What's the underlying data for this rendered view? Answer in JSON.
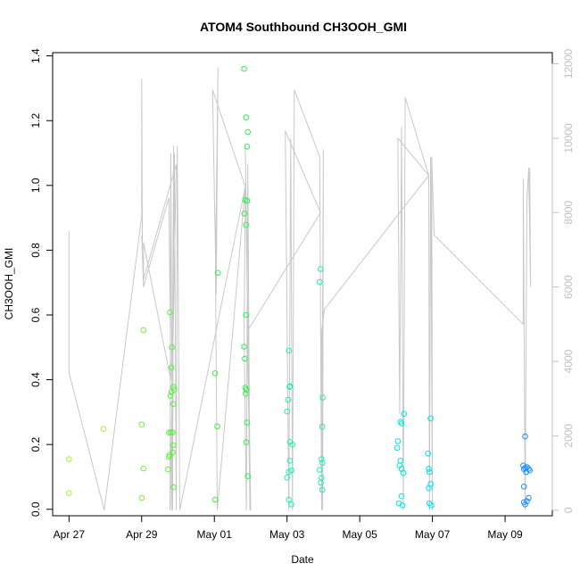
{
  "chart_data": {
    "type": "scatter",
    "title": "ATOM4 Southbound CH3OOH_GMI",
    "xlabel": "Date",
    "ylabel": "CH3OOH_GMI",
    "x_unit": "day of 2018",
    "x_ticks": [
      {
        "x": 117,
        "label": "Apr 27"
      },
      {
        "x": 119,
        "label": "Apr 29"
      },
      {
        "x": 121,
        "label": "May 01"
      },
      {
        "x": 123,
        "label": "May 03"
      },
      {
        "x": 125,
        "label": "May 05"
      },
      {
        "x": 127,
        "label": "May 07"
      },
      {
        "x": 129,
        "label": "May 09"
      }
    ],
    "xlim": [
      116.55,
      130.3
    ],
    "ylim": [
      -0.02,
      1.41
    ],
    "y_ticks": [
      0.0,
      0.2,
      0.4,
      0.6,
      0.8,
      1.0,
      1.2,
      1.4
    ],
    "y_tick_labels": [
      "0.0",
      "0.2",
      "0.4",
      "0.6",
      "0.8",
      "1.0",
      "1.2",
      "1.4"
    ],
    "y2lim": [
      -150,
      12300
    ],
    "y2_ticks": [
      0,
      2000,
      4000,
      6000,
      8000,
      10000,
      12000
    ],
    "y2_tick_labels": [
      "0",
      "2000",
      "4000",
      "6000",
      "8000",
      "10000",
      "12000"
    ],
    "grid": false,
    "legend": "none",
    "colors": {
      "altitude_line": "#c8c8c8",
      "right_axis": "#c0c0c0",
      "points_early": "#9ef53b",
      "points_mid": "#19f07a",
      "points_late": "#00e6e6",
      "points_end": "#1e90ff"
    },
    "points": [
      {
        "x": 117.0,
        "y": 0.155,
        "color": "#9ef53b"
      },
      {
        "x": 117.0,
        "y": 0.05,
        "color": "#9ef53b"
      },
      {
        "x": 117.95,
        "y": 0.248,
        "color": "#9ef53b"
      },
      {
        "x": 119.05,
        "y": 0.553,
        "color": "#7cf23c"
      },
      {
        "x": 119.0,
        "y": 0.262,
        "color": "#7cf23c"
      },
      {
        "x": 119.05,
        "y": 0.126,
        "color": "#7cf23c"
      },
      {
        "x": 119.0,
        "y": 0.035,
        "color": "#7cf23c"
      },
      {
        "x": 119.78,
        "y": 0.608,
        "color": "#5bf03e"
      },
      {
        "x": 119.83,
        "y": 0.5,
        "color": "#5bf03e"
      },
      {
        "x": 119.82,
        "y": 0.438,
        "color": "#5bf03e"
      },
      {
        "x": 119.87,
        "y": 0.378,
        "color": "#5bf03e"
      },
      {
        "x": 119.9,
        "y": 0.37,
        "color": "#5bf03e"
      },
      {
        "x": 119.82,
        "y": 0.362,
        "color": "#5bf03e"
      },
      {
        "x": 119.79,
        "y": 0.35,
        "color": "#5bf03e"
      },
      {
        "x": 119.87,
        "y": 0.325,
        "color": "#5bf03e"
      },
      {
        "x": 119.75,
        "y": 0.237,
        "color": "#5bf03e"
      },
      {
        "x": 119.8,
        "y": 0.237,
        "color": "#5bf03e"
      },
      {
        "x": 119.85,
        "y": 0.237,
        "color": "#5bf03e"
      },
      {
        "x": 119.87,
        "y": 0.198,
        "color": "#5bf03e"
      },
      {
        "x": 119.85,
        "y": 0.175,
        "color": "#5bf03e"
      },
      {
        "x": 119.77,
        "y": 0.168,
        "color": "#5bf03e"
      },
      {
        "x": 119.75,
        "y": 0.162,
        "color": "#5bf03e"
      },
      {
        "x": 119.73,
        "y": 0.123,
        "color": "#5bf03e"
      },
      {
        "x": 119.88,
        "y": 0.068,
        "color": "#5bf03e"
      },
      {
        "x": 121.1,
        "y": 0.73,
        "color": "#3ef042"
      },
      {
        "x": 121.02,
        "y": 0.42,
        "color": "#3ef042"
      },
      {
        "x": 121.08,
        "y": 0.256,
        "color": "#3ef042"
      },
      {
        "x": 121.02,
        "y": 0.03,
        "color": "#3ef042"
      },
      {
        "x": 121.82,
        "y": 1.36,
        "color": "#2ef04f"
      },
      {
        "x": 121.87,
        "y": 1.21,
        "color": "#2ef04f"
      },
      {
        "x": 121.92,
        "y": 1.165,
        "color": "#2ef04f"
      },
      {
        "x": 121.9,
        "y": 1.12,
        "color": "#2ef04f"
      },
      {
        "x": 121.85,
        "y": 0.955,
        "color": "#2ef04f"
      },
      {
        "x": 121.9,
        "y": 0.952,
        "color": "#2ef04f"
      },
      {
        "x": 121.83,
        "y": 0.913,
        "color": "#2ef04f"
      },
      {
        "x": 121.87,
        "y": 0.878,
        "color": "#2ef04f"
      },
      {
        "x": 121.87,
        "y": 0.6,
        "color": "#2ef04f"
      },
      {
        "x": 121.82,
        "y": 0.502,
        "color": "#2ef04f"
      },
      {
        "x": 121.84,
        "y": 0.465,
        "color": "#2ef04f"
      },
      {
        "x": 121.85,
        "y": 0.375,
        "color": "#2ef04f"
      },
      {
        "x": 121.88,
        "y": 0.37,
        "color": "#2ef04f"
      },
      {
        "x": 121.86,
        "y": 0.357,
        "color": "#2ef04f"
      },
      {
        "x": 121.9,
        "y": 0.268,
        "color": "#2ef04f"
      },
      {
        "x": 121.88,
        "y": 0.207,
        "color": "#2ef04f"
      },
      {
        "x": 121.92,
        "y": 0.102,
        "color": "#2ef04f"
      },
      {
        "x": 123.05,
        "y": 0.49,
        "color": "#1ef0b0"
      },
      {
        "x": 123.08,
        "y": 0.38,
        "color": "#1ef0b0"
      },
      {
        "x": 123.07,
        "y": 0.378,
        "color": "#1ef0b0"
      },
      {
        "x": 123.03,
        "y": 0.338,
        "color": "#1ef0b0"
      },
      {
        "x": 123.0,
        "y": 0.302,
        "color": "#1ef0b0"
      },
      {
        "x": 123.08,
        "y": 0.208,
        "color": "#1ef0b0"
      },
      {
        "x": 123.15,
        "y": 0.2,
        "color": "#1ef0b0"
      },
      {
        "x": 123.08,
        "y": 0.15,
        "color": "#1ef0b0"
      },
      {
        "x": 123.12,
        "y": 0.12,
        "color": "#1ef0b0"
      },
      {
        "x": 123.05,
        "y": 0.115,
        "color": "#1ef0b0"
      },
      {
        "x": 123.0,
        "y": 0.098,
        "color": "#1ef0b0"
      },
      {
        "x": 123.05,
        "y": 0.03,
        "color": "#1ef0b0"
      },
      {
        "x": 123.12,
        "y": 0.015,
        "color": "#1ef0b0"
      },
      {
        "x": 123.92,
        "y": 0.742,
        "color": "#1ef0b0"
      },
      {
        "x": 123.9,
        "y": 0.702,
        "color": "#1ef0b0"
      },
      {
        "x": 123.98,
        "y": 0.345,
        "color": "#1ef0b0"
      },
      {
        "x": 123.97,
        "y": 0.255,
        "color": "#1ef0b0"
      },
      {
        "x": 123.95,
        "y": 0.155,
        "color": "#1ef0b0"
      },
      {
        "x": 123.97,
        "y": 0.143,
        "color": "#1ef0b0"
      },
      {
        "x": 123.9,
        "y": 0.122,
        "color": "#1ef0b0"
      },
      {
        "x": 123.95,
        "y": 0.097,
        "color": "#1ef0b0"
      },
      {
        "x": 123.93,
        "y": 0.082,
        "color": "#1ef0b0"
      },
      {
        "x": 123.97,
        "y": 0.06,
        "color": "#1ef0b0"
      },
      {
        "x": 126.22,
        "y": 0.295,
        "color": "#00e6e6"
      },
      {
        "x": 126.12,
        "y": 0.27,
        "color": "#00e6e6"
      },
      {
        "x": 126.15,
        "y": 0.265,
        "color": "#00e6e6"
      },
      {
        "x": 126.05,
        "y": 0.21,
        "color": "#00e6e6"
      },
      {
        "x": 126.03,
        "y": 0.19,
        "color": "#00e6e6"
      },
      {
        "x": 126.12,
        "y": 0.15,
        "color": "#00e6e6"
      },
      {
        "x": 126.1,
        "y": 0.135,
        "color": "#00e6e6"
      },
      {
        "x": 126.15,
        "y": 0.125,
        "color": "#00e6e6"
      },
      {
        "x": 126.2,
        "y": 0.112,
        "color": "#00e6e6"
      },
      {
        "x": 126.15,
        "y": 0.04,
        "color": "#00e6e6"
      },
      {
        "x": 126.08,
        "y": 0.018,
        "color": "#00e6e6"
      },
      {
        "x": 126.18,
        "y": 0.012,
        "color": "#00e6e6"
      },
      {
        "x": 126.95,
        "y": 0.28,
        "color": "#00e0f0"
      },
      {
        "x": 126.88,
        "y": 0.172,
        "color": "#00e0f0"
      },
      {
        "x": 126.9,
        "y": 0.125,
        "color": "#00e0f0"
      },
      {
        "x": 126.92,
        "y": 0.115,
        "color": "#00e0f0"
      },
      {
        "x": 126.95,
        "y": 0.078,
        "color": "#00e0f0"
      },
      {
        "x": 126.9,
        "y": 0.065,
        "color": "#00e0f0"
      },
      {
        "x": 126.92,
        "y": 0.018,
        "color": "#00e0f0"
      },
      {
        "x": 126.97,
        "y": 0.012,
        "color": "#00e0f0"
      },
      {
        "x": 129.55,
        "y": 0.225,
        "color": "#1e90ff"
      },
      {
        "x": 129.5,
        "y": 0.135,
        "color": "#1e90ff"
      },
      {
        "x": 129.55,
        "y": 0.128,
        "color": "#1e90ff"
      },
      {
        "x": 129.52,
        "y": 0.124,
        "color": "#1e90ff"
      },
      {
        "x": 129.6,
        "y": 0.13,
        "color": "#1e90ff"
      },
      {
        "x": 129.65,
        "y": 0.125,
        "color": "#1e90ff"
      },
      {
        "x": 129.68,
        "y": 0.12,
        "color": "#1e90ff"
      },
      {
        "x": 129.58,
        "y": 0.115,
        "color": "#1e90ff"
      },
      {
        "x": 129.52,
        "y": 0.07,
        "color": "#1e90ff"
      },
      {
        "x": 129.65,
        "y": 0.035,
        "color": "#1e90ff"
      },
      {
        "x": 129.6,
        "y": 0.025,
        "color": "#1e90ff"
      },
      {
        "x": 129.52,
        "y": 0.022,
        "color": "#1e90ff"
      },
      {
        "x": 129.55,
        "y": 0.015,
        "color": "#1e90ff"
      }
    ],
    "altitude_series": {
      "axis": "right",
      "color": "#c8c8c8",
      "x": [
        117.0,
        117.0,
        117.0,
        117.97,
        119.0,
        119.0,
        119.02,
        119.0,
        119.05,
        119.75,
        119.8,
        119.05,
        119.05,
        119.95,
        119.78,
        119.8,
        119.85,
        119.88,
        119.82,
        119.9,
        119.95,
        119.98,
        120.05,
        121.85,
        120.95,
        121.05,
        121.1,
        121.03,
        121.08,
        121.85,
        121.82,
        121.88,
        121.92,
        121.98,
        121.85,
        122.0,
        121.9,
        123.92,
        122.95,
        123.05,
        123.1,
        123.15,
        123.2,
        123.9,
        123.95,
        124.0,
        123.98,
        123.95,
        124.03,
        126.9,
        126.05,
        126.1,
        126.15,
        126.2,
        126.25,
        126.9,
        126.92,
        126.95,
        127.0,
        126.98,
        127.05,
        129.5,
        129.5,
        129.55,
        129.6,
        129.65,
        129.7,
        129.68
      ],
      "y": [
        7500,
        3700,
        3700,
        0,
        7900,
        11600,
        7000,
        7400,
        6000,
        8400,
        3500,
        7200,
        6200,
        9300,
        0,
        9600,
        0,
        9800,
        0,
        9600,
        0,
        9800,
        0,
        8700,
        11300,
        5800,
        11900,
        6500,
        0,
        8700,
        4800,
        0,
        9300,
        0,
        9800,
        0,
        4800,
        8000,
        10200,
        0,
        10000,
        0,
        11300,
        9500,
        0,
        9700,
        0,
        4800,
        5400,
        9000,
        10000,
        2600,
        10300,
        0,
        11100,
        9000,
        0,
        9500,
        0,
        9500,
        7400,
        5000,
        8900,
        0,
        8300,
        9200,
        6000,
        9200
      ]
    }
  }
}
